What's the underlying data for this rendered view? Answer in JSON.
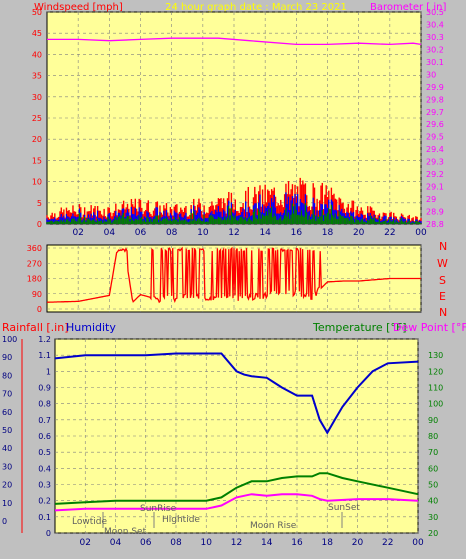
{
  "header": {
    "left_title": "Windspeed [mph]",
    "center_title": "24 hour graph date : March 23 2021",
    "right_title": "Barometer [ in]"
  },
  "dir_labels": [
    "N",
    "W",
    "S",
    "E",
    "N"
  ],
  "colors": {
    "background": "#c0c0c0",
    "plot_bg": "#ffff99",
    "wind": "#ff0000",
    "gust": "#0000ff",
    "avg": "#008000",
    "barometer": "#ff00ff",
    "rain_label": "#ff0000",
    "humidity": "#0000cc",
    "temperature": "#008000",
    "dewpoint": "#ff00ff"
  },
  "bottom_header": {
    "rain_label": "Rainfall [.in]",
    "humidity_label": "Humidity",
    "temp_label": "Temperature [°F]",
    "dew_label": "Dew Point [°F]"
  },
  "astro": {
    "lowtide": "Lowtide",
    "moonset": "Moon Set",
    "sunrise": "SunRise",
    "hightide": "Hightide",
    "moonrise": "Moon Rise",
    "sunset": "SunSet"
  },
  "chart_data": [
    {
      "type": "line",
      "x_ticks": [
        "02",
        "04",
        "06",
        "08",
        "10",
        "12",
        "14",
        "16",
        "18",
        "20",
        "22",
        "00"
      ],
      "xlim": [
        0,
        24
      ],
      "series": [
        {
          "name": "Windspeed [mph]",
          "axis": "left",
          "kind": "wind",
          "x": [
            0,
            2,
            4,
            6,
            8,
            10,
            12,
            14,
            16,
            18,
            20,
            22,
            24
          ],
          "values": [
            2,
            3,
            3,
            4,
            3,
            4,
            5,
            6,
            7,
            6,
            3,
            2,
            1
          ]
        },
        {
          "name": "Barometer [ in]",
          "axis": "right",
          "x": [
            0,
            2,
            4,
            6,
            8,
            10,
            11,
            13,
            16,
            18,
            20,
            22,
            23.5,
            24
          ],
          "values": [
            30.28,
            30.28,
            30.27,
            30.28,
            30.29,
            30.29,
            30.29,
            30.27,
            30.24,
            30.24,
            30.25,
            30.24,
            30.25,
            30.24
          ]
        }
      ],
      "left_axis": {
        "ylim": [
          0,
          50
        ],
        "ticks": [
          "0",
          "5",
          "10",
          "15",
          "20",
          "25",
          "30",
          "35",
          "40",
          "45",
          "50"
        ]
      },
      "right_axis": {
        "ylim": [
          28.8,
          30.5
        ],
        "ticks": [
          "28.8",
          "28.9",
          "29",
          "29.1",
          "29.2",
          "29.3",
          "29.4",
          "29.5",
          "29.6",
          "29.7",
          "29.8",
          "29.9",
          "30",
          "30.1",
          "30.2",
          "30.3",
          "30.4",
          "30.5"
        ]
      },
      "grid": true
    },
    {
      "type": "line",
      "series": [
        {
          "name": "Wind direction",
          "x": [
            0,
            2,
            4,
            4.5,
            5,
            5.5,
            6,
            7,
            8,
            9,
            10,
            11,
            12,
            13,
            14,
            15,
            16,
            17,
            18,
            19,
            20,
            22,
            24
          ],
          "values": [
            40,
            45,
            80,
            350,
            345,
            40,
            85,
            60,
            60,
            80,
            70,
            70,
            60,
            70,
            80,
            110,
            90,
            70,
            160,
            165,
            165,
            180,
            180
          ]
        }
      ],
      "ylim": [
        0,
        360
      ],
      "y_ticks": [
        "0",
        "90",
        "180",
        "270",
        "360"
      ]
    },
    {
      "type": "line",
      "series": [
        {
          "name": "Humidity",
          "axis": "left",
          "x": [
            0,
            2,
            4,
            6,
            8,
            10,
            11,
            12,
            12.5,
            13,
            14,
            14.5,
            15,
            16,
            17,
            17.5,
            18,
            18.5,
            19,
            20,
            21,
            22,
            24
          ],
          "values": [
            1.08,
            1.1,
            1.1,
            1.1,
            1.11,
            1.11,
            1.11,
            1.0,
            0.98,
            0.97,
            0.96,
            0.93,
            0.9,
            0.85,
            0.85,
            0.7,
            0.62,
            0.7,
            0.78,
            0.9,
            1.0,
            1.05,
            1.06
          ]
        },
        {
          "name": "Temperature [°F]",
          "axis": "right",
          "x": [
            0,
            2,
            4,
            6,
            8,
            10,
            11,
            12,
            13,
            14,
            15,
            16,
            17,
            17.5,
            18,
            19,
            20,
            22,
            24
          ],
          "values": [
            38,
            39,
            40,
            40,
            40,
            40,
            42,
            48,
            52,
            52,
            54,
            55,
            55,
            57,
            57,
            54,
            52,
            48,
            44
          ]
        },
        {
          "name": "Dew Point [°F]",
          "axis": "right",
          "x": [
            0,
            2,
            4,
            6,
            8,
            10,
            11,
            12,
            13,
            14,
            15,
            16,
            17,
            17.5,
            18,
            20,
            22,
            24
          ],
          "values": [
            34,
            35,
            35,
            35,
            35,
            35,
            37,
            42,
            44,
            43,
            44,
            44,
            43,
            41,
            40,
            41,
            41,
            40
          ]
        }
      ],
      "left_axis": {
        "ylim": [
          0,
          1.2
        ],
        "ticks": [
          "0",
          "0.1",
          "0.2",
          "0.3",
          "0.4",
          "0.5",
          "0.6",
          "0.7",
          "0.8",
          "0.9",
          "1",
          "1.1",
          "1.2"
        ]
      },
      "left_outer_axis": {
        "ylim": [
          0,
          100
        ],
        "ticks": [
          "0",
          "10",
          "20",
          "30",
          "40",
          "50",
          "60",
          "70",
          "80",
          "90",
          "100"
        ]
      },
      "right_axis": {
        "ylim": [
          20,
          140
        ],
        "ticks": [
          "20",
          "30",
          "40",
          "50",
          "60",
          "70",
          "80",
          "90",
          "100",
          "110",
          "120",
          "130"
        ]
      },
      "x_ticks": [
        "02",
        "04",
        "06",
        "08",
        "10",
        "12",
        "14",
        "16",
        "18",
        "20",
        "22",
        "00"
      ],
      "xlim": [
        0,
        24
      ],
      "grid": true
    }
  ]
}
